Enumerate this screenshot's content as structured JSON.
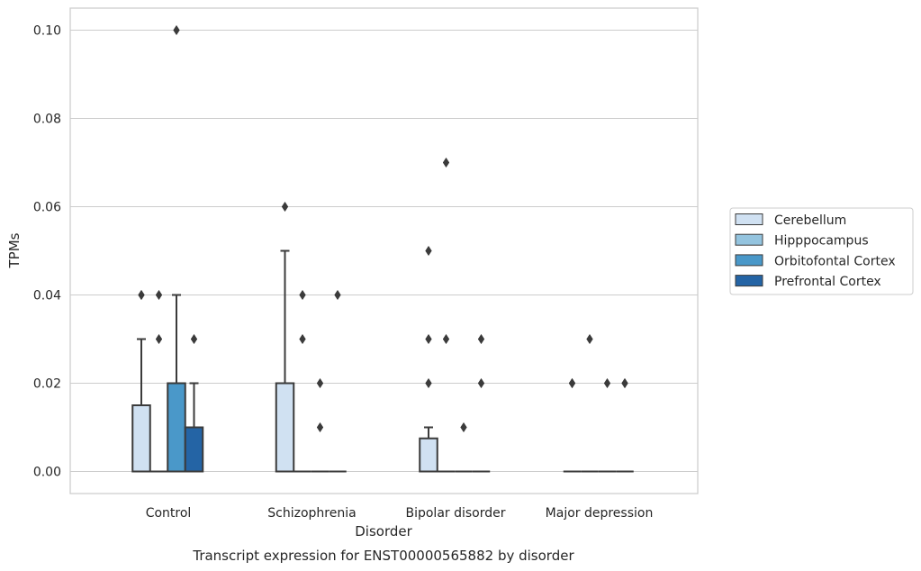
{
  "chart_data": {
    "type": "box",
    "title": "",
    "caption": "Transcript expression for ENST00000565882 by disorder",
    "xlabel": "Disorder",
    "ylabel": "TPMs",
    "ylim": [
      -0.005,
      0.105
    ],
    "yticks": [
      0.0,
      0.02,
      0.04,
      0.06,
      0.08,
      0.1
    ],
    "ytick_labels": [
      "0.00",
      "0.02",
      "0.04",
      "0.06",
      "0.08",
      "0.10"
    ],
    "grid": "horizontal",
    "legend_position": "right",
    "categories": [
      "Control",
      "Schizophrenia",
      "Bipolar disorder",
      "Major depression"
    ],
    "series": [
      {
        "name": "Cerebellum",
        "color": "#d0e1f2",
        "boxes": [
          {
            "q1": 0.0,
            "median": 0.0,
            "q3": 0.015,
            "whisker_low": 0.0,
            "whisker_high": 0.03,
            "outliers": [
              0.04,
              0.04
            ]
          },
          {
            "q1": 0.0,
            "median": 0.0,
            "q3": 0.02,
            "whisker_low": 0.0,
            "whisker_high": 0.05,
            "outliers": [
              0.06
            ]
          },
          {
            "q1": 0.0,
            "median": 0.0,
            "q3": 0.0075,
            "whisker_low": 0.0,
            "whisker_high": 0.01,
            "outliers": [
              0.02,
              0.03,
              0.05
            ]
          },
          {
            "q1": 0.0,
            "median": 0.0,
            "q3": 0.0,
            "whisker_low": 0.0,
            "whisker_high": 0.0,
            "outliers": [
              0.02,
              0.02
            ]
          }
        ]
      },
      {
        "name": "Hipppocampus",
        "color": "#94c4df",
        "boxes": [
          {
            "q1": 0.0,
            "median": 0.0,
            "q3": 0.0,
            "whisker_low": 0.0,
            "whisker_high": 0.0,
            "outliers": [
              0.03,
              0.04
            ]
          },
          {
            "q1": 0.0,
            "median": 0.0,
            "q3": 0.0,
            "whisker_low": 0.0,
            "whisker_high": 0.0,
            "outliers": [
              0.03,
              0.04
            ]
          },
          {
            "q1": 0.0,
            "median": 0.0,
            "q3": 0.0,
            "whisker_low": 0.0,
            "whisker_high": 0.0,
            "outliers": [
              0.03,
              0.07
            ]
          },
          {
            "q1": 0.0,
            "median": 0.0,
            "q3": 0.0,
            "whisker_low": 0.0,
            "whisker_high": 0.0,
            "outliers": [
              0.03
            ]
          }
        ]
      },
      {
        "name": "Orbitofontal Cortex",
        "color": "#4a98c9",
        "boxes": [
          {
            "q1": 0.0,
            "median": 0.0,
            "q3": 0.02,
            "whisker_low": 0.0,
            "whisker_high": 0.04,
            "outliers": [
              0.1
            ]
          },
          {
            "q1": 0.0,
            "median": 0.0,
            "q3": 0.0,
            "whisker_low": 0.0,
            "whisker_high": 0.0,
            "outliers": [
              0.01,
              0.02
            ]
          },
          {
            "q1": 0.0,
            "median": 0.0,
            "q3": 0.0,
            "whisker_low": 0.0,
            "whisker_high": 0.0,
            "outliers": [
              0.01
            ]
          },
          {
            "q1": 0.0,
            "median": 0.0,
            "q3": 0.0,
            "whisker_low": 0.0,
            "whisker_high": 0.0,
            "outliers": [
              0.02
            ]
          }
        ]
      },
      {
        "name": "Prefrontal Cortex",
        "color": "#2464a5",
        "boxes": [
          {
            "q1": 0.0,
            "median": 0.0,
            "q3": 0.01,
            "whisker_low": 0.0,
            "whisker_high": 0.02,
            "outliers": [
              0.03
            ]
          },
          {
            "q1": 0.0,
            "median": 0.0,
            "q3": 0.0,
            "whisker_low": 0.0,
            "whisker_high": 0.0,
            "outliers": [
              0.04
            ]
          },
          {
            "q1": 0.0,
            "median": 0.0,
            "q3": 0.0,
            "whisker_low": 0.0,
            "whisker_high": 0.0,
            "outliers": [
              0.02,
              0.03
            ]
          },
          {
            "q1": 0.0,
            "median": 0.0,
            "q3": 0.0,
            "whisker_low": 0.0,
            "whisker_high": 0.0,
            "outliers": [
              0.02,
              0.02
            ]
          }
        ]
      }
    ]
  }
}
